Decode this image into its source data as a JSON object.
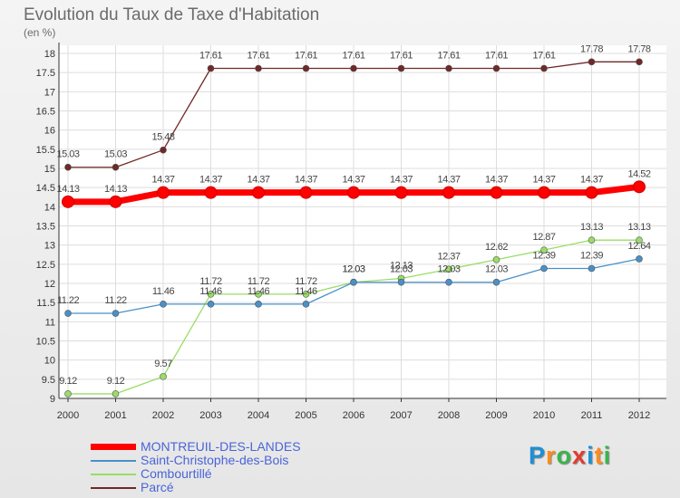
{
  "title": "Evolution du Taux de Taxe d'Habitation",
  "subtitle": "(en %)",
  "brand": {
    "letters": [
      "P",
      "r",
      "o",
      "x",
      "i",
      "t",
      "i"
    ],
    "colors": [
      "#1e8fd5",
      "#ff8c1a",
      "#39b54a",
      "#e53a2e",
      "#1e8fd5",
      "#ff8c1a",
      "#39b54a"
    ]
  },
  "chart_data": {
    "type": "line",
    "x": [
      "2000",
      "2001",
      "2002",
      "2003",
      "2004",
      "2005",
      "2006",
      "2007",
      "2008",
      "2009",
      "2010",
      "2011",
      "2012"
    ],
    "ylim": [
      9,
      18
    ],
    "yticks": [
      "9",
      "9.5",
      "10",
      "10.5",
      "11",
      "11.5",
      "12",
      "12.5",
      "13",
      "13.5",
      "14",
      "14.5",
      "15",
      "15.5",
      "16",
      "16.5",
      "17",
      "17.5",
      "18"
    ],
    "grid": true,
    "series": [
      {
        "name": "MONTREUIL-DES-LANDES",
        "color": "#ff0000",
        "values": [
          14.13,
          14.13,
          14.37,
          14.37,
          14.37,
          14.37,
          14.37,
          14.37,
          14.37,
          14.37,
          14.37,
          14.37,
          14.52
        ],
        "labels": [
          "14.13",
          "14.13",
          "14.37",
          "14.37",
          "14.37",
          "14.37",
          "14.37",
          "14.37",
          "14.37",
          "14.37",
          "14.37",
          "14.37",
          "14.52"
        ]
      },
      {
        "name": "Saint-Christophe-des-Bois",
        "color": "#4a90c8",
        "values": [
          11.22,
          11.22,
          11.46,
          11.46,
          11.46,
          11.46,
          12.03,
          12.03,
          12.03,
          12.03,
          12.39,
          12.39,
          12.64
        ],
        "labels": [
          "11.22",
          "11.22",
          "11.46",
          "11.46",
          "11.46",
          "11.46",
          "12.03",
          "12.03",
          "12.03",
          "12.03",
          "12.39",
          "12.39",
          "12.64"
        ]
      },
      {
        "name": "Combourtillé",
        "color": "#99dd66",
        "values": [
          9.12,
          9.12,
          9.57,
          11.72,
          11.72,
          11.72,
          12.03,
          12.13,
          12.37,
          12.62,
          12.87,
          13.13,
          13.13
        ],
        "labels": [
          "9.12",
          "9.12",
          "9.57",
          "11.72",
          "11.72",
          "11.72",
          "12.03",
          "12.13",
          "12.37",
          "12.62",
          "12.87",
          "13.13",
          "13.13"
        ]
      },
      {
        "name": "Parcé",
        "color": "#702828",
        "values": [
          15.03,
          15.03,
          15.48,
          17.61,
          17.61,
          17.61,
          17.61,
          17.61,
          17.61,
          17.61,
          17.61,
          17.78,
          17.78
        ],
        "labels": [
          "15.03",
          "15.03",
          "15.48",
          "17.61",
          "17.61",
          "17.61",
          "17.61",
          "17.61",
          "17.61",
          "17.61",
          "17.61",
          "17.78",
          "17.78"
        ]
      }
    ]
  }
}
